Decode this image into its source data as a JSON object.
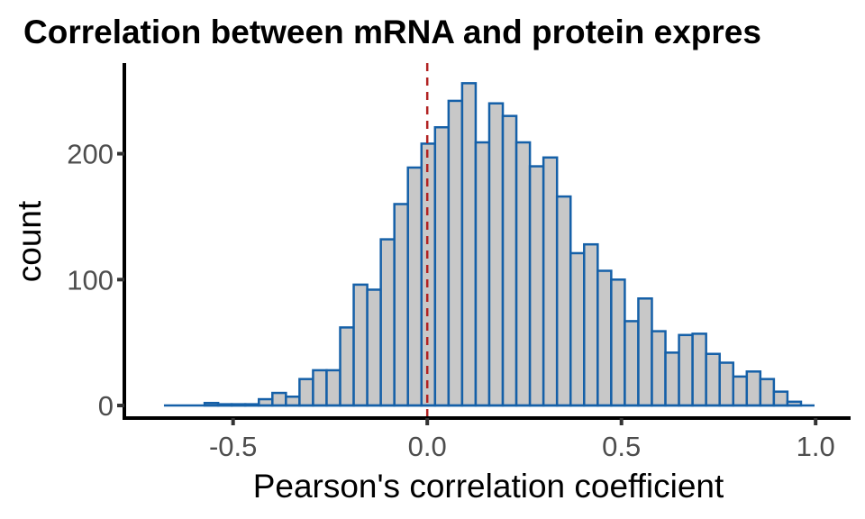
{
  "chart_data": {
    "type": "bar",
    "subtype": "histogram",
    "title": "Correlation between mRNA and protein expres",
    "xlabel": "Pearson's correlation coefficient",
    "ylabel": "count",
    "xlim": [
      -0.78,
      1.09
    ],
    "ylim": [
      -10,
      272
    ],
    "x_ticks": [
      {
        "value": -0.5,
        "label": "-0.5"
      },
      {
        "value": 0.0,
        "label": "0.0"
      },
      {
        "value": 0.5,
        "label": "0.5"
      },
      {
        "value": 1.0,
        "label": "1.0"
      }
    ],
    "y_ticks": [
      {
        "value": 0,
        "label": "0"
      },
      {
        "value": 100,
        "label": "100"
      },
      {
        "value": 200,
        "label": "200"
      }
    ],
    "bin_start": -0.678,
    "bin_width": 0.0349,
    "values": [
      0,
      0,
      0,
      2,
      1,
      1,
      1,
      5,
      10,
      7,
      21,
      28,
      28,
      62,
      96,
      92,
      132,
      160,
      189,
      208,
      221,
      242,
      256,
      209,
      240,
      230,
      209,
      190,
      197,
      166,
      121,
      128,
      107,
      100,
      67,
      85,
      59,
      42,
      56,
      57,
      41,
      34,
      23,
      27,
      21,
      11,
      3,
      0
    ],
    "vline": {
      "x": 0.0,
      "style": "dashed",
      "color": "#b22222"
    },
    "colors": {
      "fill": "#c8c8c8",
      "outline": "#1560a8",
      "axis": "#000000",
      "tick_text": "#4d4d4d"
    },
    "grid": false,
    "legend": "none"
  }
}
